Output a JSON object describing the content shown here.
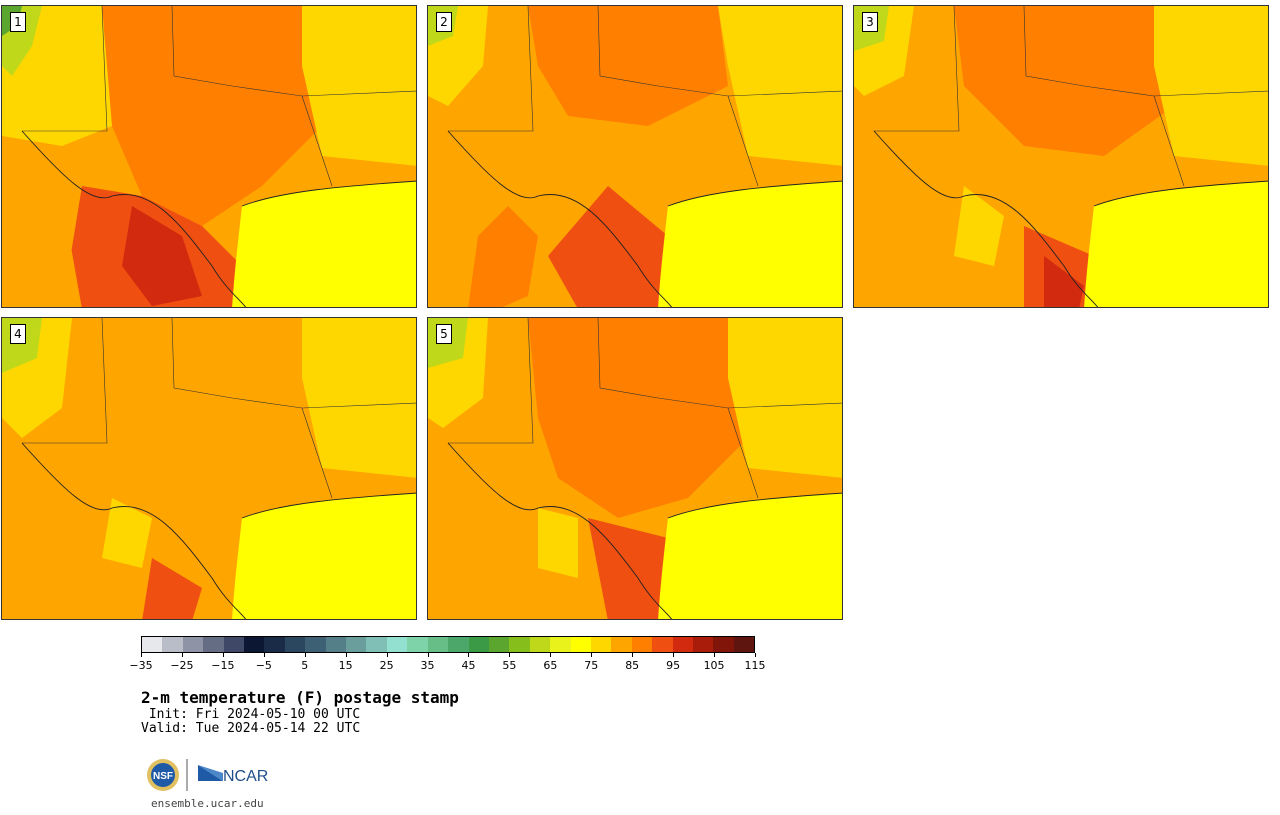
{
  "panels": [
    {
      "label": "1"
    },
    {
      "label": "2"
    },
    {
      "label": "3"
    },
    {
      "label": "4"
    },
    {
      "label": "5"
    }
  ],
  "colorbar": {
    "colors": [
      "#e6e8ec",
      "#b9bdc8",
      "#8e94a5",
      "#656d85",
      "#3f4866",
      "#0c1833",
      "#1a2b48",
      "#2b4760",
      "#3d6074",
      "#547f88",
      "#6a9e9d",
      "#7fbfb6",
      "#94e0d0",
      "#7fd3a8",
      "#67be87",
      "#4ca86a",
      "#3a9a46",
      "#5ba62e",
      "#86be1c",
      "#bfd91a",
      "#e9f21a",
      "#ffff00",
      "#ffd700",
      "#ffa500",
      "#ff7f00",
      "#f04f12",
      "#d12a0e",
      "#a91c0a",
      "#82150a",
      "#5e150f"
    ],
    "tick_labels": [
      "-35",
      "-25",
      "-15",
      "-5",
      "5",
      "15",
      "25",
      "35",
      "45",
      "55",
      "65",
      "75",
      "85",
      "95",
      "105",
      "115"
    ]
  },
  "title": "2-m temperature (F) postage stamp",
  "init_line": " Init: Fri 2024-05-10 00 UTC",
  "valid_line": "Valid: Tue 2024-05-14 22 UTC",
  "logos": {
    "nsf": "NSF",
    "ncar": "NCAR"
  },
  "website": "ensemble.ucar.edu"
}
